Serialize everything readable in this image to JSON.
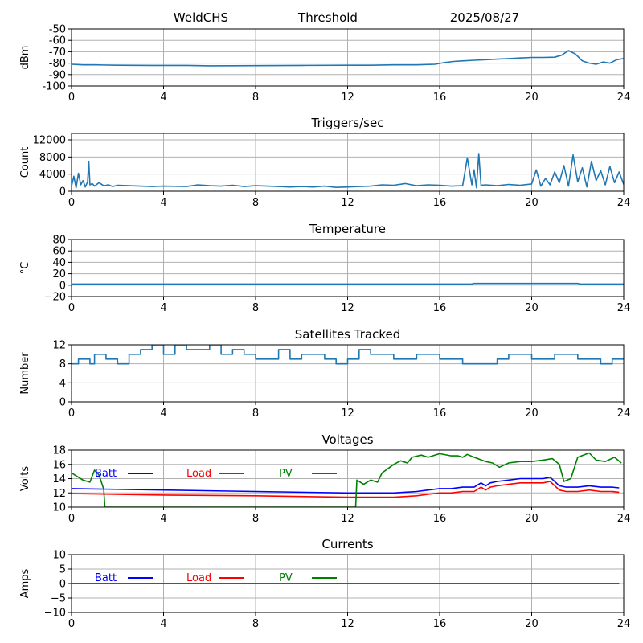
{
  "header": {
    "station": "WeldCHS",
    "label": "Threshold",
    "date": "2025/08/27"
  },
  "colors": {
    "series_blue": "#1f77b4",
    "batt": "#0000ff",
    "load": "#ff0000",
    "pv": "#008000",
    "grid": "#b0b0b0",
    "axis": "#000000"
  },
  "chart_data": [
    {
      "id": "threshold",
      "type": "line",
      "title": "",
      "xlabel": "",
      "ylabel": "dBm",
      "xlim": [
        0,
        24
      ],
      "ylim": [
        -100,
        -50
      ],
      "xticks": [
        "0",
        "4",
        "8",
        "12",
        "16",
        "20",
        "24"
      ],
      "yticks": [
        "-50",
        "-60",
        "-70",
        "-80",
        "-90",
        "-100"
      ],
      "yticks_values": [
        -50,
        -60,
        -70,
        -80,
        -90,
        -100
      ],
      "grid": true,
      "series": [
        {
          "color": "#1f77b4",
          "x": [
            0,
            0.5,
            1,
            2,
            3.5,
            5,
            6,
            8,
            10,
            12,
            13,
            14,
            15,
            15.8,
            16.2,
            16.6,
            17,
            17.5,
            18,
            18.5,
            19,
            19.5,
            20,
            20.5,
            21,
            21.3,
            21.6,
            21.9,
            22.2,
            22.5,
            22.8,
            23.1,
            23.4,
            23.7,
            24
          ],
          "y": [
            -81,
            -81.5,
            -81.5,
            -81.8,
            -82,
            -82,
            -82.3,
            -82.2,
            -82,
            -81.8,
            -81.8,
            -81.5,
            -81.5,
            -81,
            -79.5,
            -78.5,
            -78,
            -77.5,
            -77,
            -76.5,
            -76,
            -75.5,
            -75,
            -75,
            -74.8,
            -73,
            -69,
            -72,
            -78,
            -80,
            -81,
            -79,
            -80,
            -77,
            -76
          ]
        }
      ]
    },
    {
      "id": "triggers",
      "type": "line",
      "title": "Triggers/sec",
      "xlabel": "",
      "ylabel": "Count",
      "xlim": [
        0,
        24
      ],
      "ylim": [
        0,
        13500
      ],
      "xticks": [
        "0",
        "4",
        "8",
        "12",
        "16",
        "20",
        "24"
      ],
      "yticks": [
        "12000",
        "8000",
        "4000",
        "0"
      ],
      "yticks_values": [
        12000,
        8000,
        4000,
        0
      ],
      "grid": true,
      "series": [
        {
          "color": "#1f77b4",
          "x": [
            0,
            0.1,
            0.2,
            0.3,
            0.4,
            0.5,
            0.6,
            0.7,
            0.75,
            0.8,
            0.9,
            1.0,
            1.2,
            1.4,
            1.6,
            1.8,
            2.0,
            2.5,
            3.0,
            3.5,
            4.0,
            5.0,
            5.5,
            6.0,
            6.5,
            7.0,
            7.5,
            8.0,
            8.5,
            9.0,
            9.5,
            10,
            10.5,
            11,
            11.5,
            12,
            12.5,
            13,
            13.5,
            14,
            14.5,
            15,
            15.5,
            16,
            16.5,
            17,
            17.2,
            17.4,
            17.5,
            17.6,
            17.7,
            17.8,
            18.0,
            18.5,
            19,
            19.5,
            20,
            20.2,
            20.4,
            20.6,
            20.8,
            21.0,
            21.2,
            21.4,
            21.6,
            21.8,
            22.0,
            22.2,
            22.4,
            22.6,
            22.8,
            23.0,
            23.2,
            23.4,
            23.6,
            23.8,
            24
          ],
          "y": [
            1200,
            3500,
            800,
            4200,
            1500,
            2500,
            1000,
            2200,
            7000,
            1500,
            1800,
            1200,
            2000,
            1300,
            1500,
            1100,
            1400,
            1300,
            1200,
            1100,
            1200,
            1100,
            1500,
            1300,
            1200,
            1400,
            1100,
            1300,
            1200,
            1100,
            1000,
            1100,
            1000,
            1200,
            900,
            1000,
            1100,
            1200,
            1500,
            1400,
            1800,
            1300,
            1500,
            1400,
            1200,
            1300,
            7800,
            1500,
            5000,
            800,
            8800,
            1400,
            1500,
            1300,
            1600,
            1400,
            1700,
            5000,
            1200,
            3000,
            1500,
            4500,
            2000,
            6000,
            1200,
            8500,
            2200,
            5500,
            1000,
            7000,
            2500,
            4800,
            1500,
            5800,
            2000,
            4500,
            1600
          ]
        }
      ]
    },
    {
      "id": "temperature",
      "type": "line",
      "title": "Temperature",
      "xlabel": "",
      "ylabel": "°C",
      "xlim": [
        0,
        24
      ],
      "ylim": [
        -20,
        80
      ],
      "xticks": [
        "0",
        "4",
        "8",
        "12",
        "16",
        "20",
        "24"
      ],
      "yticks": [
        "80",
        "60",
        "40",
        "20",
        "0",
        "−20"
      ],
      "yticks_values": [
        80,
        60,
        40,
        20,
        0,
        -20
      ],
      "grid": true,
      "series": [
        {
          "color": "#1f77b4",
          "x": [
            0,
            17.4,
            17.5,
            22,
            22.1,
            24
          ],
          "y": [
            2,
            2,
            3,
            3,
            2,
            2
          ]
        }
      ]
    },
    {
      "id": "satellites",
      "type": "line",
      "title": "Satellites Tracked",
      "xlabel": "",
      "ylabel": "Number",
      "xlim": [
        0,
        24
      ],
      "ylim": [
        0,
        12
      ],
      "xticks": [
        "0",
        "4",
        "8",
        "12",
        "16",
        "20",
        "24"
      ],
      "yticks": [
        "12",
        "8",
        "4",
        "0"
      ],
      "yticks_values": [
        12,
        8,
        4,
        0
      ],
      "grid": true,
      "series": [
        {
          "color": "#1f77b4",
          "x": [
            0,
            0.3,
            0.3,
            0.8,
            0.8,
            1.0,
            1.0,
            1.5,
            1.5,
            2.0,
            2.0,
            2.5,
            2.5,
            3.0,
            3.0,
            3.5,
            3.5,
            4.0,
            4.0,
            4.5,
            4.5,
            5.0,
            5.0,
            6.0,
            6.0,
            6.5,
            6.5,
            7.0,
            7.0,
            7.5,
            7.5,
            8.0,
            8.0,
            9.0,
            9.0,
            9.5,
            9.5,
            10.0,
            10.0,
            11.0,
            11.0,
            11.5,
            11.5,
            12.0,
            12.0,
            12.5,
            12.5,
            13.0,
            13.0,
            14.0,
            14.0,
            15.0,
            15.0,
            16.0,
            16.0,
            17.0,
            17.0,
            18.5,
            18.5,
            19.0,
            19.0,
            20.0,
            20.0,
            21.0,
            21.0,
            22.0,
            22.0,
            23.0,
            23.0,
            23.5,
            23.5,
            24
          ],
          "y": [
            8,
            8,
            9,
            9,
            8,
            8,
            10,
            10,
            9,
            9,
            8,
            8,
            10,
            10,
            11,
            11,
            12,
            12,
            10,
            10,
            12,
            12,
            11,
            11,
            12,
            12,
            10,
            10,
            11,
            11,
            10,
            10,
            9,
            9,
            11,
            11,
            9,
            9,
            10,
            10,
            9,
            9,
            8,
            8,
            9,
            9,
            11,
            11,
            10,
            10,
            9,
            9,
            10,
            10,
            9,
            9,
            8,
            8,
            9,
            9,
            10,
            10,
            9,
            9,
            10,
            10,
            9,
            9,
            8,
            8,
            9,
            9
          ]
        }
      ]
    },
    {
      "id": "voltages",
      "type": "line",
      "title": "Voltages",
      "xlabel": "",
      "ylabel": "Volts",
      "xlim": [
        0,
        24
      ],
      "ylim": [
        10,
        18
      ],
      "xticks": [
        "0",
        "4",
        "8",
        "12",
        "16",
        "20",
        "24"
      ],
      "yticks": [
        "18",
        "16",
        "14",
        "12",
        "10"
      ],
      "yticks_values": [
        18,
        16,
        14,
        12,
        10
      ],
      "grid": true,
      "legend": [
        "Batt",
        "Load",
        "PV"
      ],
      "series": [
        {
          "name": "Batt",
          "color": "#0000ff",
          "x": [
            0,
            4,
            8,
            12,
            14,
            15,
            15.5,
            16,
            16.5,
            17,
            17.5,
            17.8,
            18.0,
            18.2,
            18.5,
            19,
            19.5,
            20,
            20.5,
            20.8,
            21.2,
            21.5,
            22,
            22.5,
            23,
            23.5,
            23.8
          ],
          "y": [
            12.6,
            12.4,
            12.2,
            12.0,
            12.0,
            12.2,
            12.4,
            12.6,
            12.6,
            12.8,
            12.8,
            13.4,
            13.0,
            13.4,
            13.6,
            13.8,
            14.0,
            14.0,
            14.0,
            14.2,
            13.0,
            12.8,
            12.8,
            13.0,
            12.8,
            12.8,
            12.7
          ]
        },
        {
          "name": "Load",
          "color": "#ff0000",
          "x": [
            0,
            4,
            8,
            12,
            14,
            15,
            15.5,
            16,
            16.5,
            17,
            17.5,
            17.8,
            18.0,
            18.2,
            18.5,
            19,
            19.5,
            20,
            20.5,
            20.8,
            21.2,
            21.5,
            22,
            22.5,
            23,
            23.5,
            23.8
          ],
          "y": [
            11.9,
            11.7,
            11.6,
            11.4,
            11.4,
            11.6,
            11.8,
            12.0,
            12.0,
            12.2,
            12.2,
            12.8,
            12.4,
            12.8,
            13.0,
            13.2,
            13.4,
            13.4,
            13.4,
            13.6,
            12.4,
            12.2,
            12.2,
            12.4,
            12.2,
            12.2,
            12.1
          ]
        },
        {
          "name": "PV",
          "color": "#008000",
          "x": [
            0,
            0.5,
            0.8,
            1.0,
            1.2,
            1.4,
            1.45,
            12.35,
            12.4,
            12.7,
            13.0,
            13.3,
            13.5,
            14.0,
            14.3,
            14.6,
            14.8,
            15.2,
            15.5,
            16.0,
            16.5,
            16.8,
            17.0,
            17.2,
            17.5,
            18.0,
            18.3,
            18.6,
            19.0,
            19.5,
            20.0,
            20.5,
            20.9,
            21.2,
            21.4,
            21.7,
            22.0,
            22.5,
            22.8,
            23.2,
            23.6,
            23.9
          ],
          "y": [
            14.8,
            13.8,
            13.5,
            15.2,
            14.5,
            12.5,
            10,
            10,
            13.8,
            13.2,
            13.8,
            13.5,
            14.8,
            16.0,
            16.5,
            16.2,
            17.0,
            17.3,
            17.0,
            17.5,
            17.2,
            17.2,
            17.0,
            17.4,
            17.0,
            16.4,
            16.2,
            15.6,
            16.2,
            16.4,
            16.4,
            16.6,
            16.8,
            16.0,
            13.6,
            14.0,
            17.0,
            17.6,
            16.6,
            16.4,
            17.0,
            16.2
          ]
        }
      ]
    },
    {
      "id": "currents",
      "type": "line",
      "title": "Currents",
      "xlabel": "",
      "ylabel": "Amps",
      "xlim": [
        0,
        24
      ],
      "ylim": [
        -10,
        10
      ],
      "xticks": [
        "0",
        "4",
        "8",
        "12",
        "16",
        "20",
        "24"
      ],
      "yticks": [
        "10",
        "5",
        "0",
        "−5",
        "−10"
      ],
      "yticks_values": [
        10,
        5,
        0,
        -5,
        -10
      ],
      "grid": true,
      "legend": [
        "Batt",
        "Load",
        "PV"
      ],
      "series": [
        {
          "name": "Batt",
          "color": "#0000ff",
          "x": [
            0,
            23.8
          ],
          "y": [
            0,
            0
          ]
        },
        {
          "name": "Load",
          "color": "#ff0000",
          "x": [
            0,
            23.8
          ],
          "y": [
            0,
            0
          ]
        },
        {
          "name": "PV",
          "color": "#008000",
          "x": [
            0,
            23.8
          ],
          "y": [
            0,
            0
          ]
        }
      ]
    }
  ]
}
